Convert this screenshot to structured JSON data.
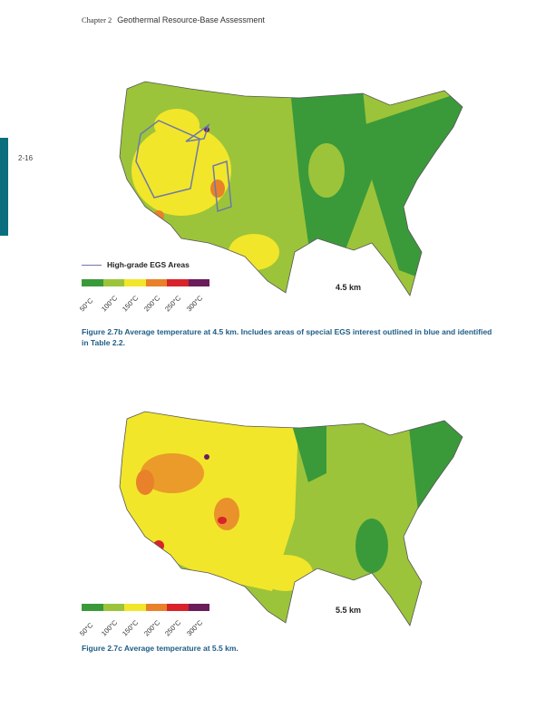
{
  "header": {
    "chapter": "Chapter 2",
    "title": "Geothermal Resource-Base Assessment"
  },
  "page_number": "2-16",
  "legend": {
    "line_label": "High-grade EGS Areas",
    "line_color": "#6b7aa8",
    "colors": [
      "#3a9a3a",
      "#9cc43a",
      "#f2e62a",
      "#e8812a",
      "#d8232a",
      "#6a1d5a"
    ],
    "ticks": [
      "50°C",
      "100°C",
      "150°C",
      "200°C",
      "250°C",
      "300°C"
    ]
  },
  "figure_b": {
    "depth_label": "4.5 km",
    "caption": "Figure 2.7b Average temperature at 4.5 km. Includes areas of special EGS interest outlined in blue and identified in Table 2.2."
  },
  "figure_c": {
    "depth_label": "5.5 km",
    "caption": "Figure 2.7c Average temperature at 5.5 km."
  }
}
